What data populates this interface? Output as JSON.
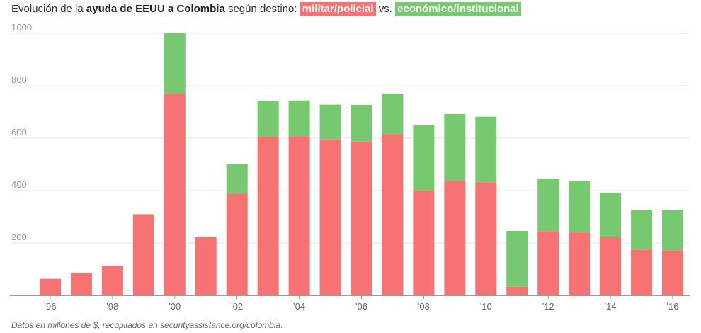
{
  "title": {
    "prefix": "Evolución de la ",
    "bold": "ayuda de EEUU a Colombia",
    "middle": " según destino: ",
    "military_label": "militar/policial",
    "vs": " vs. ",
    "economic_label": "económico/institucional"
  },
  "source": "Datos en millones de $, recopilados en securityassistance.org/colombia.",
  "colors": {
    "military": "#f77373",
    "economic": "#77c96f",
    "grid": "#e6e6e6",
    "axis": "#333333"
  },
  "chart_data": {
    "type": "bar",
    "stacked": true,
    "x": [
      1996,
      1997,
      1998,
      1999,
      2000,
      2001,
      2002,
      2003,
      2004,
      2005,
      2006,
      2007,
      2008,
      2009,
      2010,
      2011,
      2012,
      2013,
      2014,
      2015,
      2016
    ],
    "series": [
      {
        "name": "militar/policial",
        "color": "#f77373",
        "values": [
          63,
          85,
          113,
          307,
          770,
          222,
          388,
          605,
          607,
          595,
          587,
          615,
          400,
          437,
          432,
          33,
          245,
          240,
          222,
          175,
          172
        ]
      },
      {
        "name": "económico/institucional",
        "color": "#77c96f",
        "values": [
          0,
          0,
          0,
          3,
          230,
          0,
          113,
          138,
          137,
          133,
          140,
          155,
          250,
          255,
          250,
          213,
          200,
          195,
          170,
          150,
          153
        ]
      }
    ],
    "ylim": [
      0,
      1000
    ],
    "yticks": [
      200,
      400,
      600,
      800,
      1000
    ],
    "xtick_labels": [
      "'96",
      "'98",
      "'00",
      "'02",
      "'04",
      "'06",
      "'08",
      "'10",
      "'12",
      "'14",
      "'16"
    ],
    "xlabel": "",
    "ylabel": "",
    "grid": true
  }
}
